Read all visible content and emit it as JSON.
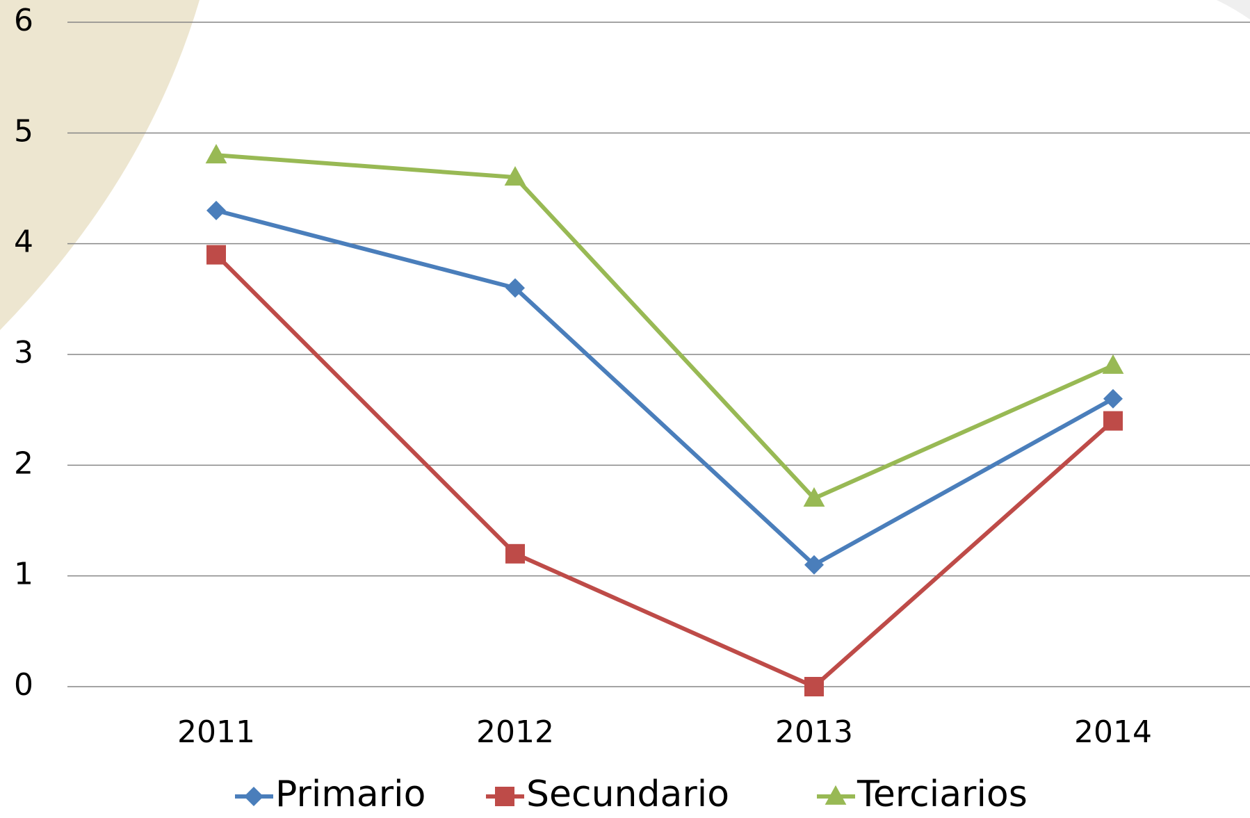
{
  "chart_data": {
    "type": "line",
    "categories": [
      "2011",
      "2012",
      "2013",
      "2014"
    ],
    "series": [
      {
        "name": "Primario",
        "color": "#4a7ebb",
        "marker": "diamond",
        "values": [
          4.3,
          3.6,
          1.1,
          2.6
        ]
      },
      {
        "name": "Secundario",
        "color": "#be4b48",
        "marker": "square",
        "values": [
          3.9,
          1.2,
          0,
          2.4
        ]
      },
      {
        "name": "Terciarios",
        "color": "#98b954",
        "marker": "triangle",
        "values": [
          4.8,
          4.6,
          1.7,
          2.9
        ]
      }
    ],
    "ylim": [
      0,
      6
    ],
    "yticks": [
      0,
      1,
      2,
      3,
      4,
      5,
      6
    ],
    "grid": true,
    "legend": "bottom"
  }
}
